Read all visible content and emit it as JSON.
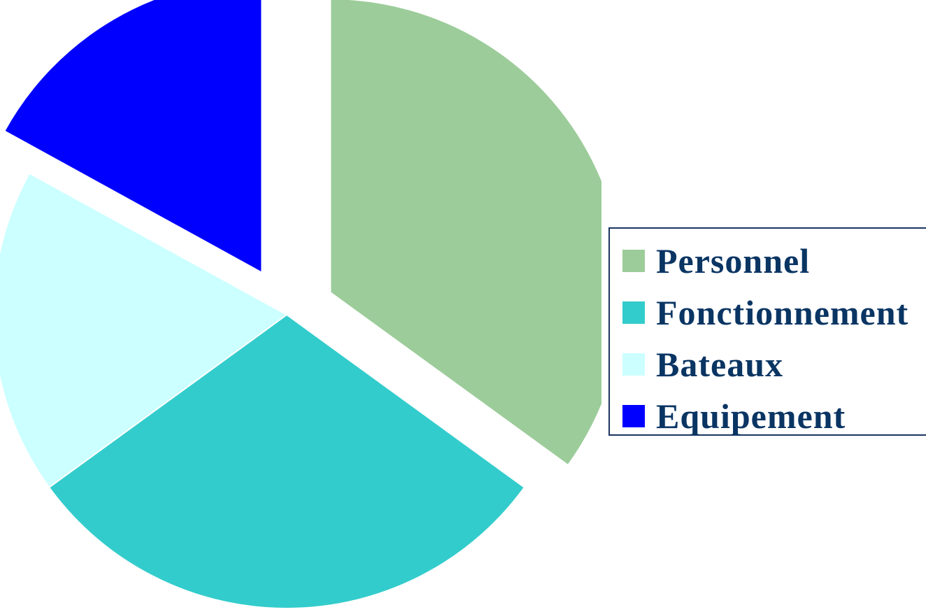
{
  "chart_data": {
    "type": "pie",
    "categories": [
      "Personnel",
      "Fonctionnement",
      "Bateaux",
      "Equipement"
    ],
    "values": [
      35,
      30,
      18,
      17
    ],
    "colors": [
      "#9ccc9a",
      "#33cccc",
      "#ccffff",
      "#0000ff"
    ],
    "start_angle_deg": 0,
    "exploded": [
      true,
      false,
      false,
      true
    ],
    "legend_position": "right",
    "legend_bordered": true,
    "title": ""
  },
  "legend": {
    "items": [
      {
        "label": "Personnel",
        "color": "#9ccc9a"
      },
      {
        "label": "Fonctionnement",
        "color": "#33cccc"
      },
      {
        "label": "Bateaux",
        "color": "#ccffff"
      },
      {
        "label": "Equipement",
        "color": "#0000ff"
      }
    ]
  }
}
